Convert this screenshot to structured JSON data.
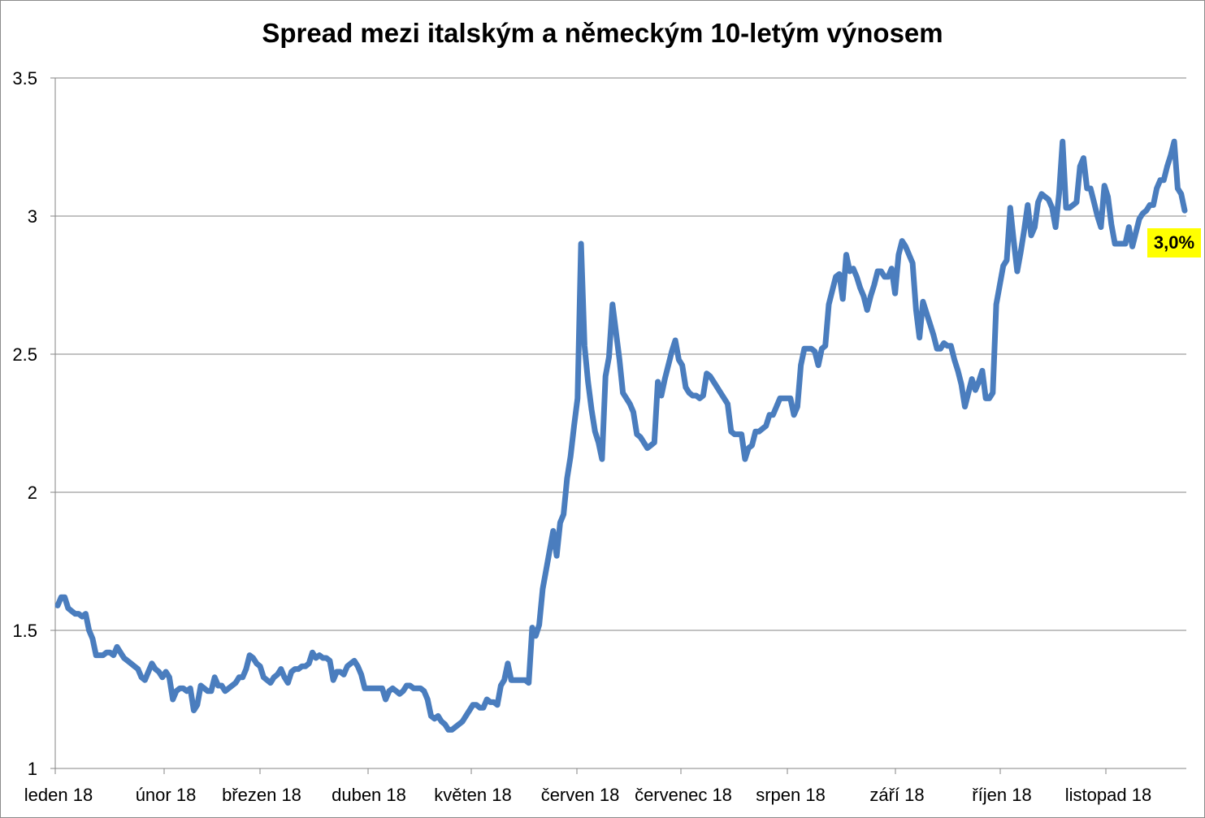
{
  "chart_data": {
    "type": "line",
    "title": "Spread mezi italským a německým 10-letým výnosem",
    "xlabel": "",
    "ylabel": "",
    "ylim": [
      1,
      3.5
    ],
    "yticks": [
      "1",
      "1.5",
      "2",
      "2.5",
      "3",
      "3.5"
    ],
    "ytick_values": [
      1,
      1.5,
      2,
      2.5,
      3,
      3.5
    ],
    "xtick_labels": [
      "leden 18",
      "únor 18",
      "březen 18",
      "duben 18",
      "květen 18",
      "červen 18",
      "červenec 18",
      "srpen 18",
      "září 18",
      "říjen 18",
      "listopad 18"
    ],
    "grid": "horizontal",
    "legend": "none",
    "series_color": "#4a7dbe",
    "last_value_label": "3,0%",
    "last_value_label_bg": "#ffff00",
    "series": [
      {
        "values": [
          1.59,
          1.62,
          1.62,
          1.58,
          1.57,
          1.56,
          1.56,
          1.55,
          1.56,
          1.5,
          1.47,
          1.41,
          1.41,
          1.41,
          1.42,
          1.42,
          1.41,
          1.44,
          1.42,
          1.4,
          1.39,
          1.38,
          1.37,
          1.36,
          1.33,
          1.32,
          1.35,
          1.38,
          1.36,
          1.35,
          1.33,
          1.35,
          1.33,
          1.25,
          1.28,
          1.29,
          1.29,
          1.28,
          1.29,
          1.21,
          1.23,
          1.3,
          1.29,
          1.28,
          1.28,
          1.33,
          1.3,
          1.3,
          1.28,
          1.29,
          1.3,
          1.31,
          1.33,
          1.33,
          1.36,
          1.41,
          1.4,
          1.38,
          1.37,
          1.33,
          1.32,
          1.31,
          1.33,
          1.34,
          1.36,
          1.33,
          1.31,
          1.35,
          1.36,
          1.36,
          1.37,
          1.37,
          1.38,
          1.42,
          1.4,
          1.41,
          1.4,
          1.4,
          1.39,
          1.32,
          1.35,
          1.35,
          1.34,
          1.37,
          1.38,
          1.39,
          1.37,
          1.34,
          1.29,
          1.29,
          1.29,
          1.29,
          1.29,
          1.29,
          1.25,
          1.28,
          1.29,
          1.28,
          1.27,
          1.28,
          1.3,
          1.3,
          1.29,
          1.29,
          1.29,
          1.28,
          1.25,
          1.19,
          1.18,
          1.19,
          1.17,
          1.16,
          1.14,
          1.14,
          1.15,
          1.16,
          1.17,
          1.19,
          1.21,
          1.23,
          1.23,
          1.22,
          1.22,
          1.25,
          1.24,
          1.24,
          1.23,
          1.3,
          1.32,
          1.38,
          1.32,
          1.32,
          1.32,
          1.32,
          1.32,
          1.31,
          1.51,
          1.48,
          1.52,
          1.65,
          1.72,
          1.79,
          1.86,
          1.77,
          1.89,
          1.92,
          2.05,
          2.13,
          2.24,
          2.34,
          2.9,
          2.53,
          2.4,
          2.3,
          2.22,
          2.18,
          2.12,
          2.42,
          2.49,
          2.68,
          2.58,
          2.48,
          2.36,
          2.34,
          2.32,
          2.29,
          2.21,
          2.2,
          2.18,
          2.16,
          2.17,
          2.18,
          2.4,
          2.35,
          2.41,
          2.46,
          2.51,
          2.55,
          2.48,
          2.46,
          2.38,
          2.36,
          2.35,
          2.35,
          2.34,
          2.35,
          2.43,
          2.42,
          2.4,
          2.38,
          2.36,
          2.34,
          2.32,
          2.22,
          2.21,
          2.21,
          2.21,
          2.12,
          2.16,
          2.17,
          2.22,
          2.22,
          2.23,
          2.24,
          2.28,
          2.28,
          2.31,
          2.34,
          2.34,
          2.34,
          2.34,
          2.28,
          2.31,
          2.46,
          2.52,
          2.52,
          2.52,
          2.51,
          2.46,
          2.52,
          2.53,
          2.68,
          2.73,
          2.78,
          2.79,
          2.7,
          2.86,
          2.8,
          2.81,
          2.78,
          2.74,
          2.71,
          2.66,
          2.71,
          2.75,
          2.8,
          2.8,
          2.78,
          2.78,
          2.81,
          2.72,
          2.86,
          2.91,
          2.89,
          2.86,
          2.83,
          2.66,
          2.56,
          2.69,
          2.65,
          2.61,
          2.57,
          2.52,
          2.52,
          2.54,
          2.53,
          2.53,
          2.48,
          2.44,
          2.39,
          2.31,
          2.36,
          2.41,
          2.37,
          2.4,
          2.44,
          2.34,
          2.34,
          2.36,
          2.68,
          2.75,
          2.82,
          2.84,
          3.03,
          2.91,
          2.8,
          2.87,
          2.95,
          3.04,
          2.93,
          2.96,
          3.05,
          3.08,
          3.07,
          3.06,
          3.03,
          2.96,
          3.08,
          3.27,
          3.03,
          3.03,
          3.04,
          3.05,
          3.18,
          3.21,
          3.1,
          3.1,
          3.05,
          3.0,
          2.96,
          3.11,
          3.07,
          2.97,
          2.9,
          2.9,
          2.9,
          2.9,
          2.96,
          2.89,
          2.94,
          2.99,
          3.01,
          3.02,
          3.04,
          3.04,
          3.1,
          3.13,
          3.13,
          3.18,
          3.22,
          3.27,
          3.1,
          3.08,
          3.02
        ]
      }
    ]
  }
}
